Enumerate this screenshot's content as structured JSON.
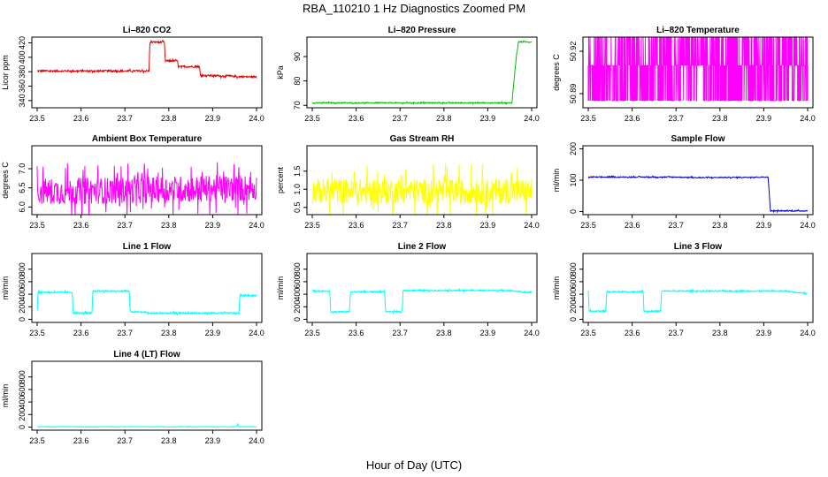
{
  "figure": {
    "title": "RBA_110210  1 Hz Diagnostics Zoomed PM",
    "xlabel": "Hour of Day (UTC)"
  },
  "chart_data": [
    {
      "type": "line",
      "title": "Li–820 CO2",
      "ylabel": "Licor ppm",
      "xlim": [
        23.5,
        24.0
      ],
      "ylim": [
        330,
        428
      ],
      "xticks": [
        "23.5",
        "23.6",
        "23.7",
        "23.8",
        "23.9",
        "24.0"
      ],
      "yticks": [
        "340",
        "360",
        "380",
        "400",
        "420"
      ],
      "ytick_values": [
        340,
        360,
        380,
        400,
        420
      ],
      "color": "#e00000",
      "series": [
        {
          "x": [
            23.5,
            23.65,
            23.755,
            23.757,
            23.79,
            23.792,
            23.82,
            23.822,
            23.87,
            23.872,
            23.93,
            23.935,
            23.96,
            24.0
          ],
          "y": [
            381,
            381,
            381,
            421,
            421,
            395,
            395,
            387,
            387,
            375,
            374,
            374,
            373,
            373
          ]
        }
      ],
      "noise": 1.2
    },
    {
      "type": "line",
      "title": "Li–820 Pressure",
      "ylabel": "kPa",
      "xlim": [
        23.5,
        24.0
      ],
      "ylim": [
        69,
        98
      ],
      "xticks": [
        "23.5",
        "23.6",
        "23.7",
        "23.8",
        "23.9",
        "24.0"
      ],
      "yticks": [
        "70",
        "80",
        "90"
      ],
      "ytick_values": [
        70,
        80,
        90
      ],
      "color": "#00c000",
      "series": [
        {
          "x": [
            23.5,
            23.95,
            23.955,
            23.965,
            23.97,
            24.0
          ],
          "y": [
            71,
            71,
            71,
            90,
            96,
            96
          ]
        }
      ],
      "noise": 0.2
    },
    {
      "type": "line",
      "title": "Li–820 Temperature",
      "ylabel": "degrees C",
      "xlim": [
        23.5,
        24.0
      ],
      "ylim": [
        50.88,
        50.93
      ],
      "xticks": [
        "23.5",
        "23.6",
        "23.7",
        "23.8",
        "23.9",
        "24.0"
      ],
      "yticks": [
        "50.89",
        "50.92"
      ],
      "ytick_values": [
        50.89,
        50.92
      ],
      "color": "#ff00ff",
      "series": [
        {
          "x": [
            23.5,
            24.0
          ],
          "y": [
            50.905,
            50.905
          ]
        }
      ],
      "levels": [
        50.885,
        50.91,
        50.93
      ]
    },
    {
      "type": "line",
      "title": "Ambient Box Temperature",
      "ylabel": "degrees C",
      "xlim": [
        23.5,
        24.0
      ],
      "ylim": [
        5.8,
        7.6
      ],
      "xticks": [
        "23.5",
        "23.6",
        "23.7",
        "23.8",
        "23.9",
        "24.0"
      ],
      "yticks": [
        "6.0",
        "6.5",
        "7.0"
      ],
      "ytick_values": [
        6.0,
        6.5,
        7.0
      ],
      "color": "#ff00ff",
      "series": [
        {
          "x": [
            23.5,
            24.0
          ],
          "y": [
            6.4,
            6.5
          ]
        }
      ],
      "noise": 0.35
    },
    {
      "type": "line",
      "title": "Gas Stream RH",
      "ylabel": "percent",
      "xlim": [
        23.5,
        24.0
      ],
      "ylim": [
        0.3,
        2.2
      ],
      "xticks": [
        "23.5",
        "23.6",
        "23.7",
        "23.8",
        "23.9",
        "24.0"
      ],
      "yticks": [
        "0.5",
        "1.0",
        "1.5"
      ],
      "ytick_values": [
        0.5,
        1.0,
        1.5
      ],
      "color": "#ffff00",
      "series": [
        {
          "x": [
            23.5,
            24.0
          ],
          "y": [
            0.95,
            0.95
          ]
        }
      ],
      "noise": 0.35
    },
    {
      "type": "line",
      "title": "Sample Flow",
      "ylabel": "ml/min",
      "xlim": [
        23.5,
        24.0
      ],
      "ylim": [
        -10,
        210
      ],
      "xticks": [
        "23.5",
        "23.6",
        "23.7",
        "23.8",
        "23.9",
        "24.0"
      ],
      "yticks": [
        "0",
        "100",
        "200"
      ],
      "ytick_values": [
        0,
        100,
        200
      ],
      "color": "#0000c0",
      "series": [
        {
          "x": [
            23.5,
            23.7,
            23.75,
            23.91,
            23.915,
            24.0
          ],
          "y": [
            110,
            110,
            108,
            110,
            2,
            2
          ]
        }
      ],
      "noise": 1.5
    },
    {
      "type": "line",
      "title": "Line 1 Flow",
      "ylabel": "ml/min",
      "xlim": [
        23.5,
        24.0
      ],
      "ylim": [
        -50,
        1050
      ],
      "xticks": [
        "23.5",
        "23.6",
        "23.7",
        "23.8",
        "23.9",
        "24.0"
      ],
      "yticks": [
        "0",
        "200",
        "400",
        "600",
        "800"
      ],
      "ytick_values": [
        0,
        200,
        400,
        600,
        800
      ],
      "color": "#00ffff",
      "series": [
        {
          "x": [
            23.5,
            23.502,
            23.58,
            23.582,
            23.625,
            23.627,
            23.71,
            23.712,
            23.75,
            23.752,
            23.955,
            23.96,
            23.962,
            24.0
          ],
          "y": [
            150,
            430,
            430,
            100,
            100,
            450,
            450,
            120,
            110,
            100,
            100,
            100,
            380,
            380
          ]
        }
      ],
      "noise": 12
    },
    {
      "type": "line",
      "title": "Line 2 Flow",
      "ylabel": "ml/min",
      "xlim": [
        23.5,
        24.0
      ],
      "ylim": [
        -50,
        1050
      ],
      "xticks": [
        "23.5",
        "23.6",
        "23.7",
        "23.8",
        "23.9",
        "24.0"
      ],
      "yticks": [
        "0",
        "200",
        "400",
        "600",
        "800"
      ],
      "ytick_values": [
        0,
        200,
        400,
        600,
        800
      ],
      "color": "#00ffff",
      "series": [
        {
          "x": [
            23.5,
            23.54,
            23.542,
            23.585,
            23.587,
            23.665,
            23.667,
            23.705,
            23.707,
            23.95,
            24.0
          ],
          "y": [
            450,
            450,
            120,
            120,
            440,
            440,
            120,
            120,
            460,
            460,
            420
          ]
        }
      ],
      "noise": 10
    },
    {
      "type": "line",
      "title": "Line 3 Flow",
      "ylabel": "ml/min",
      "xlim": [
        23.5,
        24.0
      ],
      "ylim": [
        -50,
        1050
      ],
      "xticks": [
        "23.5",
        "23.6",
        "23.7",
        "23.8",
        "23.9",
        "24.0"
      ],
      "yticks": [
        "0",
        "200",
        "400",
        "600",
        "800"
      ],
      "ytick_values": [
        0,
        200,
        400,
        600,
        800
      ],
      "color": "#00ffff",
      "series": [
        {
          "x": [
            23.5,
            23.502,
            23.54,
            23.542,
            23.625,
            23.627,
            23.665,
            23.667,
            23.95,
            24.0
          ],
          "y": [
            450,
            130,
            130,
            440,
            440,
            130,
            130,
            450,
            450,
            410
          ]
        }
      ],
      "noise": 10
    },
    {
      "type": "line",
      "title": "Line 4 (LT) Flow",
      "ylabel": "ml/min",
      "xlim": [
        23.5,
        24.0
      ],
      "ylim": [
        -50,
        1050
      ],
      "xticks": [
        "23.5",
        "23.6",
        "23.7",
        "23.8",
        "23.9",
        "24.0"
      ],
      "yticks": [
        "0",
        "200",
        "400",
        "600",
        "800"
      ],
      "ytick_values": [
        0,
        200,
        400,
        600,
        800
      ],
      "color": "#00ffff",
      "series": [
        {
          "x": [
            23.5,
            23.955,
            23.957,
            23.96,
            23.962,
            24.0
          ],
          "y": [
            5,
            5,
            60,
            5,
            5,
            5
          ]
        }
      ],
      "noise": 3
    }
  ]
}
